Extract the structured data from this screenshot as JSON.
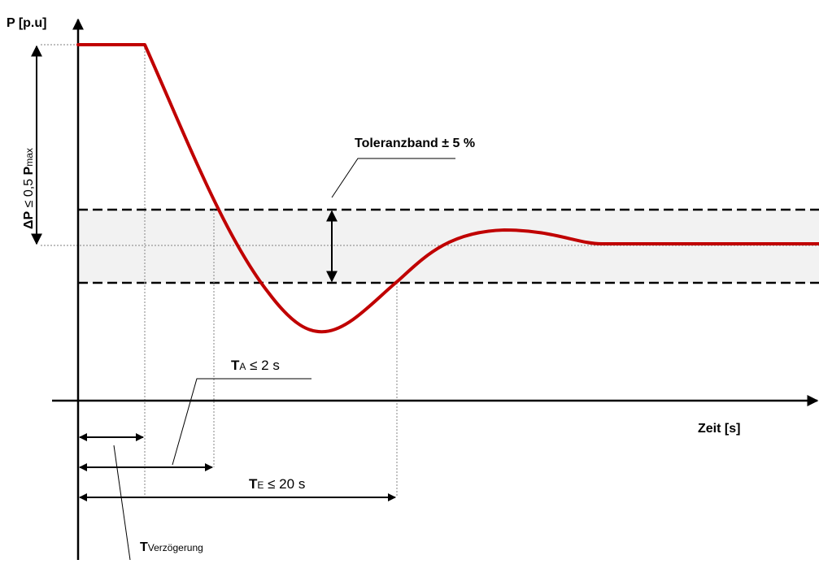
{
  "y_axis_label": "P [p.u]",
  "x_axis_label": "Zeit [s]",
  "delta_p": {
    "prefix": "ΔP",
    "middle": " ≤ 0,5 ",
    "bold_p": "P",
    "sub": "max"
  },
  "tolerance_band": "Toleranzband ± 5 %",
  "t_a": {
    "main": "T",
    "sub": "A",
    "rest": " ≤ 2 s"
  },
  "t_e": {
    "main": "T",
    "sub": "E",
    "rest": " ≤ 20 s"
  },
  "t_delay": {
    "main": "T",
    "sub": "Verzögerung"
  },
  "colors": {
    "curve": "#c00000",
    "band_fill": "#f2f2f2",
    "guide": "#999999",
    "axis": "#000000"
  }
}
